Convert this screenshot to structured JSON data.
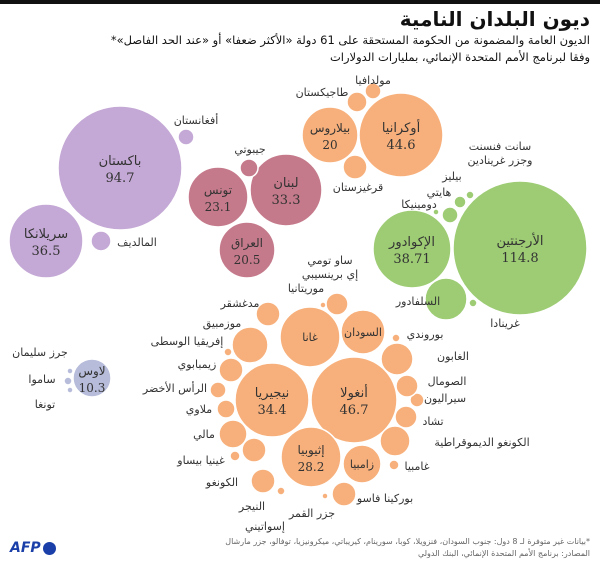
{
  "header": {
    "title": "ديون البلدان النامية",
    "subtitle_line1": "الديون العامة والمضمونة من الحكومة المستحقة على 61 دولة «الأكثر ضعفا» أو «عند الحد الفاصل»*",
    "subtitle_line2": "وفقا لبرنامج الأمم المتحدة الإنمائي، بمليارات الدولارات"
  },
  "footer": {
    "note": "*بيانات غير متوفرة لـ 8 دول: جنوب السودان، فنزويلا، كوبا، سورينام، كيريباتي، ميكرونيزيا، توفالو، جزر مارشال",
    "sources": "المصادر: برنامج الأمم المتحدة الإنمائي، البنك الدولي",
    "logo": "AFP"
  },
  "chart_data": {
    "type": "bubble",
    "unit": "بمليارات الدولارات",
    "groups": [
      {
        "color": "#c4a8d5",
        "countries": [
          {
            "name": "باكستان",
            "value": 94.7
          },
          {
            "name": "سريلانكا",
            "value": 36.5
          },
          {
            "name": "أفغانستان"
          },
          {
            "name": "المالديف"
          }
        ]
      },
      {
        "color": "#c57a8b",
        "countries": [
          {
            "name": "لبنان",
            "value": 33.3
          },
          {
            "name": "تونس",
            "value": 23.1
          },
          {
            "name": "العراق",
            "value": 20.5
          },
          {
            "name": "جيبوتي"
          }
        ]
      },
      {
        "color": "#f7b07b",
        "countries": [
          {
            "name": "أوكرانيا",
            "value": 44.6
          },
          {
            "name": "بيلاروس",
            "value": 20
          },
          {
            "name": "طاجيكستان"
          },
          {
            "name": "مولدافيا"
          },
          {
            "name": "قرغيزستان"
          }
        ]
      },
      {
        "color": "#9dcc74",
        "countries": [
          {
            "name": "الأرجنتين",
            "value": 114.8
          },
          {
            "name": "الإكوادور",
            "value": 38.71
          },
          {
            "name": "السلفادور"
          },
          {
            "name": "غرينادا"
          },
          {
            "name": "هايتي"
          },
          {
            "name": "بيليز"
          },
          {
            "name": "سانت فنسنت\nوجزر غرينادين"
          },
          {
            "name": "دومينيكا"
          }
        ]
      },
      {
        "color": "#f7b07b",
        "countries": [
          {
            "name": "أنغولا",
            "value": 46.7
          },
          {
            "name": "نيجيريا",
            "value": 34.4
          },
          {
            "name": "غانا"
          },
          {
            "name": "السودان"
          },
          {
            "name": "إثيوبيا",
            "value": 28.2
          },
          {
            "name": "زامبيا"
          },
          {
            "name": "ساو تومي\nإي برينسيبي"
          },
          {
            "name": "موريتانيا"
          },
          {
            "name": "مدغشقر"
          },
          {
            "name": "موزمبيق"
          },
          {
            "name": "إفريقيا الوسطى"
          },
          {
            "name": "زيمبابوي"
          },
          {
            "name": "الرأس الأخضر"
          },
          {
            "name": "ملاوي"
          },
          {
            "name": "مالي"
          },
          {
            "name": "غينيا بيساو"
          },
          {
            "name": "الكونغو"
          },
          {
            "name": "النيجر"
          },
          {
            "name": "إسواتيني"
          },
          {
            "name": "جزر القمر"
          },
          {
            "name": "بوركينا فاسو"
          },
          {
            "name": "غامبيا"
          },
          {
            "name": "الكونغو الديموقراطية"
          },
          {
            "name": "تشاد"
          },
          {
            "name": "سيراليون"
          },
          {
            "name": "الصومال"
          },
          {
            "name": "الغابون"
          },
          {
            "name": "بوروندي"
          }
        ]
      },
      {
        "color": "#b6bcd9",
        "countries": [
          {
            "name": "لاوس",
            "value": 10.3
          },
          {
            "name": "جرز سليمان"
          },
          {
            "name": "ساموا"
          },
          {
            "name": "تونغا"
          }
        ]
      }
    ]
  }
}
